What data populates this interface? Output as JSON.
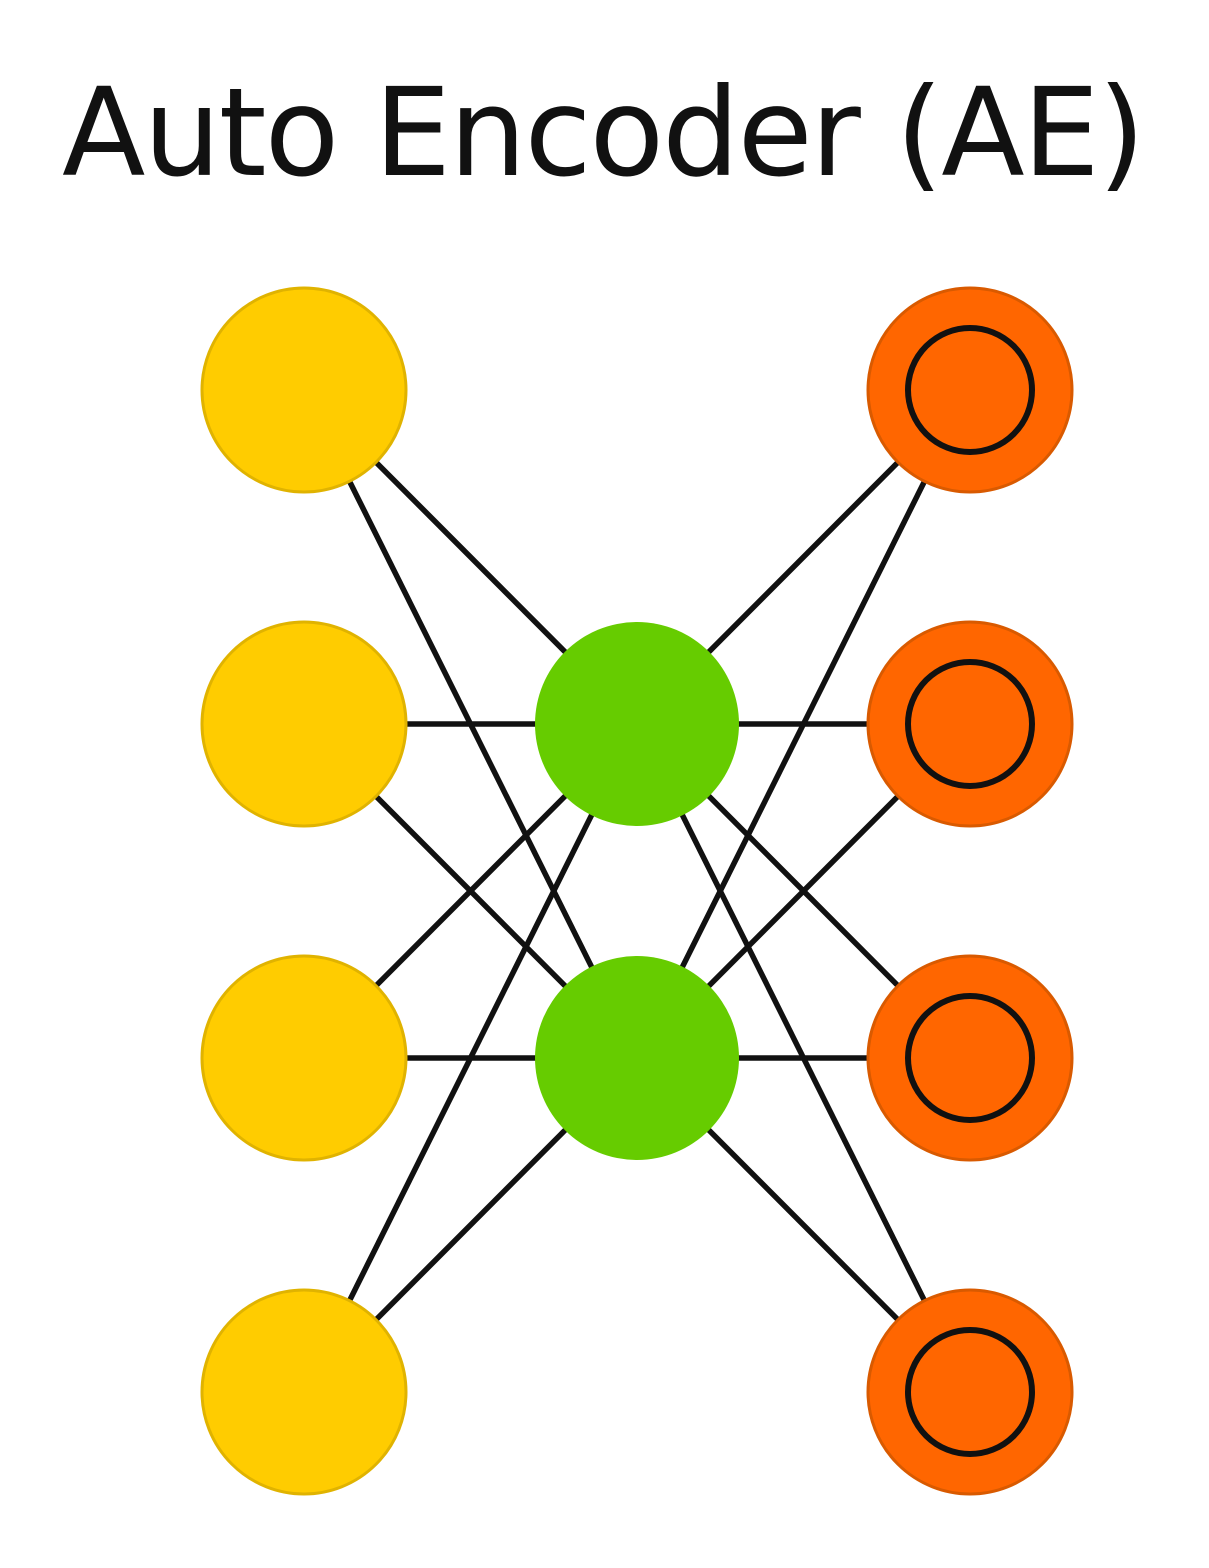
{
  "diagram": {
    "title": "Auto Encoder (AE)",
    "colors": {
      "input_fill": "#FFCC00",
      "input_stroke": "#E0B300",
      "hidden_fill": "#66CC00",
      "output_fill": "#FF6600",
      "output_stroke": "#D95A00",
      "edge": "#111111",
      "output_ring": "#111111"
    },
    "layers": [
      {
        "name": "input",
        "node_count": 4,
        "style": "input"
      },
      {
        "name": "hidden",
        "node_count": 2,
        "style": "hidden"
      },
      {
        "name": "output",
        "node_count": 4,
        "style": "output"
      }
    ],
    "connectivity": "fully-connected between adjacent layers"
  }
}
